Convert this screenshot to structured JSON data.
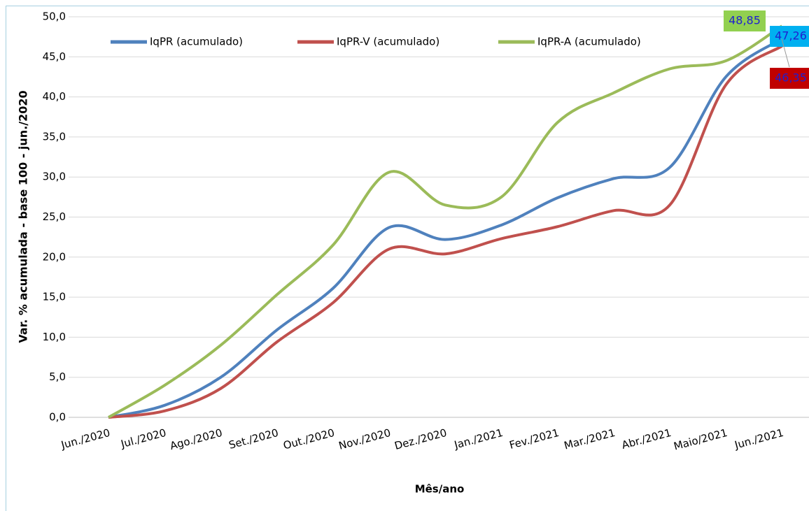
{
  "chart_data": {
    "type": "line",
    "x_label": "Mês/ano",
    "y_label": "Var. % acumulada - base 100 - jun./2020",
    "categories": [
      "Jun./2020",
      "Jul./2020",
      "Ago./2020",
      "Set./2020",
      "Out./2020",
      "Nov./2020",
      "Dez./2020",
      "Jan./2021",
      "Fev./2021",
      "Mar./2021",
      "Abr./2021",
      "Maio/2021",
      "Jun./2021"
    ],
    "series": [
      {
        "name": "IqPR (acumulado)",
        "color": "#4f81bd",
        "label_bg": "#00b0f0",
        "values": [
          0,
          1.5,
          5.0,
          10.9,
          16.1,
          23.7,
          22.2,
          24.0,
          27.4,
          29.8,
          31.2,
          42.5,
          47.26
        ],
        "value_labels": [
          null,
          null,
          null,
          null,
          null,
          null,
          null,
          null,
          null,
          null,
          null,
          null,
          "47,26"
        ]
      },
      {
        "name": "IqPR-V  (acumulado)",
        "color": "#c0504d",
        "label_bg": "#c00000",
        "values": [
          0,
          0.8,
          3.6,
          9.4,
          14.3,
          21.0,
          20.4,
          22.3,
          23.8,
          25.8,
          26.5,
          41.5,
          46.35
        ],
        "value_labels": [
          null,
          null,
          null,
          null,
          null,
          null,
          null,
          null,
          null,
          null,
          null,
          null,
          "46,35"
        ]
      },
      {
        "name": "IqPR-A  (acumulado)",
        "color": "#9bbb59",
        "label_bg": "#92d050",
        "values": [
          0,
          4.0,
          9.0,
          15.3,
          21.5,
          30.6,
          26.5,
          27.5,
          36.8,
          40.5,
          43.5,
          44.5,
          48.85
        ],
        "value_labels": [
          null,
          null,
          null,
          null,
          null,
          null,
          null,
          null,
          null,
          null,
          null,
          null,
          "48,85"
        ]
      }
    ],
    "ylim": [
      0,
      50
    ],
    "yticks": [
      {
        "value": 0,
        "label": "0,0"
      },
      {
        "value": 5,
        "label": "5,0"
      },
      {
        "value": 10,
        "label": "10,0"
      },
      {
        "value": 15,
        "label": "15,0"
      },
      {
        "value": 20,
        "label": "20,0"
      },
      {
        "value": 25,
        "label": "25,0"
      },
      {
        "value": 30,
        "label": "30,0"
      },
      {
        "value": 35,
        "label": "35,0"
      },
      {
        "value": 40,
        "label": "40,0"
      },
      {
        "value": 45,
        "label": "45,0"
      },
      {
        "value": 50,
        "label": "50,0"
      }
    ],
    "grid": true,
    "smooth": true
  }
}
